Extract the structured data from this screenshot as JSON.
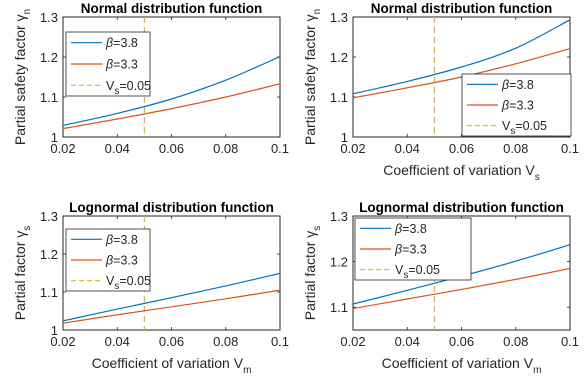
{
  "colors": {
    "beta38": "#0072BD",
    "beta33": "#D95319",
    "vs": "#EDB120"
  },
  "chart_data": [
    {
      "type": "line",
      "title": "Normal distribution function",
      "ylabel_main": "Partial safety factor ",
      "ylabel_sym": "γ",
      "ylabel_sub": "n",
      "xlabel_main": "",
      "xlabel_sub": "",
      "xlim": [
        0.02,
        0.1
      ],
      "ylim": [
        1,
        1.3
      ],
      "xticks": [
        "0.02",
        "0.04",
        "0.06",
        "0.08",
        "0.1"
      ],
      "yticks": [
        "1",
        "1.1",
        "1.2",
        "1.3"
      ],
      "legend_position": "top-left",
      "vline": 0.05,
      "series": [
        {
          "name_sym": "β",
          "name_rest": "=3.8",
          "x": [
            0.02,
            0.04,
            0.06,
            0.08,
            0.1
          ],
          "y": [
            1.029,
            1.059,
            1.095,
            1.142,
            1.201
          ]
        },
        {
          "name_sym": "β",
          "name_rest": "=3.3",
          "x": [
            0.02,
            0.04,
            0.06,
            0.08,
            0.1
          ],
          "y": [
            1.021,
            1.045,
            1.071,
            1.1,
            1.133
          ]
        },
        {
          "name_main": "V",
          "name_sub": "s",
          "name_rest": "=0.05"
        }
      ]
    },
    {
      "type": "line",
      "title": "Normal distribution function",
      "ylabel_main": "Partial safety factor ",
      "ylabel_sym": "γ",
      "ylabel_sub": "n",
      "xlabel_main": "Coefficient of variation V",
      "xlabel_sub": "s",
      "xlim": [
        0.02,
        0.1
      ],
      "ylim": [
        1,
        1.3
      ],
      "xticks": [
        "0.02",
        "0.04",
        "0.06",
        "0.08",
        "0.1"
      ],
      "yticks": [
        "1",
        "1.1",
        "1.2",
        "1.3"
      ],
      "legend_position": "bottom-right",
      "vline": 0.05,
      "series": [
        {
          "name_sym": "β",
          "name_rest": "=3.8",
          "x": [
            0.02,
            0.04,
            0.06,
            0.08,
            0.1
          ],
          "y": [
            1.108,
            1.139,
            1.175,
            1.222,
            1.293
          ]
        },
        {
          "name_sym": "β",
          "name_rest": "=3.3",
          "x": [
            0.02,
            0.04,
            0.06,
            0.08,
            0.1
          ],
          "y": [
            1.098,
            1.123,
            1.15,
            1.183,
            1.221
          ]
        },
        {
          "name_main": "V",
          "name_sub": "s",
          "name_rest": "=0.05"
        }
      ]
    },
    {
      "type": "line",
      "title": "Lognormal distribution function",
      "ylabel_main": "Partial factor ",
      "ylabel_sym": "γ",
      "ylabel_sub": "s",
      "xlabel_main": "Coefficient of variation V",
      "xlabel_sub": "m",
      "xlim": [
        0.02,
        0.1
      ],
      "ylim": [
        1,
        1.3
      ],
      "xticks": [
        "0.02",
        "0.04",
        "0.06",
        "0.08",
        "0.1"
      ],
      "yticks": [
        "1",
        "1.1",
        "1.2",
        "1.3"
      ],
      "legend_position": "top-left",
      "vline": 0.05,
      "series": [
        {
          "name_sym": "β",
          "name_rest": "=3.8",
          "x": [
            0.02,
            0.04,
            0.06,
            0.08,
            0.1
          ],
          "y": [
            1.024,
            1.055,
            1.085,
            1.116,
            1.149
          ]
        },
        {
          "name_sym": "β",
          "name_rest": "=3.3",
          "x": [
            0.02,
            0.04,
            0.06,
            0.08,
            0.1
          ],
          "y": [
            1.018,
            1.04,
            1.061,
            1.082,
            1.105
          ]
        },
        {
          "name_main": "V",
          "name_sub": "s",
          "name_rest": "=0.05"
        }
      ]
    },
    {
      "type": "line",
      "title": "Lognormal distribution function",
      "ylabel_main": "Partial factor ",
      "ylabel_sym": "γ",
      "ylabel_sub": "s",
      "xlabel_main": "Coefficient of variation V",
      "xlabel_sub": "m",
      "xlim": [
        0.02,
        0.1
      ],
      "ylim": [
        1.05,
        1.3
      ],
      "xticks": [
        "0.02",
        "0.04",
        "0.06",
        "0.08",
        "0.1"
      ],
      "yticks": [
        "1.1",
        "1.2",
        "1.3"
      ],
      "legend_position": "top-left",
      "vline": 0.05,
      "series": [
        {
          "name_sym": "β",
          "name_rest": "=3.8",
          "x": [
            0.02,
            0.04,
            0.06,
            0.08,
            0.1
          ],
          "y": [
            1.107,
            1.137,
            1.168,
            1.201,
            1.237
          ]
        },
        {
          "name_sym": "β",
          "name_rest": "=3.3",
          "x": [
            0.02,
            0.04,
            0.06,
            0.08,
            0.1
          ],
          "y": [
            1.097,
            1.118,
            1.139,
            1.161,
            1.185
          ]
        },
        {
          "name_main": "V",
          "name_sub": "s",
          "name_rest": "=0.05"
        }
      ]
    }
  ]
}
